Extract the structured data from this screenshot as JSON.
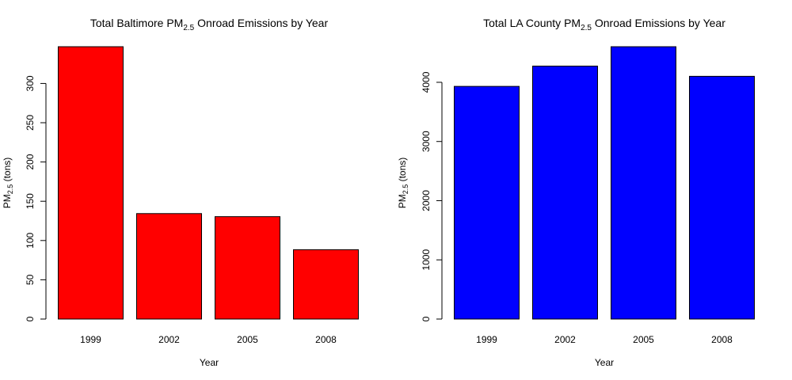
{
  "chart_data": [
    {
      "type": "bar",
      "title": "Total Baltimore PM2.5 Onroad Emissions by Year",
      "title_parts": {
        "prefix": "Total Baltimore PM",
        "sub": "2.5",
        "suffix": " Onroad Emissions by Year"
      },
      "categories": [
        "1999",
        "2002",
        "2005",
        "2008"
      ],
      "values": [
        346.8,
        134.3,
        130.4,
        88.3
      ],
      "xlabel": "Year",
      "ylabel": "PM2.5 (tons)",
      "ylabel_parts": {
        "prefix": "PM",
        "sub": "2.5",
        "suffix": " (tons)"
      },
      "ylim": [
        0,
        346.8
      ],
      "yticks": [
        0,
        50,
        100,
        150,
        200,
        250,
        300
      ],
      "color": "#ff0000",
      "grid": false,
      "legend": "none"
    },
    {
      "type": "bar",
      "title": "Total LA County PM2.5 Onroad Emissions by Year",
      "title_parts": {
        "prefix": "Total LA County PM",
        "sub": "2.5",
        "suffix": " Onroad Emissions by Year"
      },
      "categories": [
        "1999",
        "2002",
        "2005",
        "2008"
      ],
      "values": [
        3931.1,
        4274.0,
        4601.4,
        4101.3
      ],
      "xlabel": "Year",
      "ylabel": "PM2.5 (tons)",
      "ylabel_parts": {
        "prefix": "PM",
        "sub": "2.5",
        "suffix": " (tons)"
      },
      "ylim": [
        0,
        4601.4
      ],
      "yticks": [
        0,
        1000,
        2000,
        3000,
        4000
      ],
      "color": "#0000ff",
      "grid": false,
      "legend": "none"
    }
  ]
}
